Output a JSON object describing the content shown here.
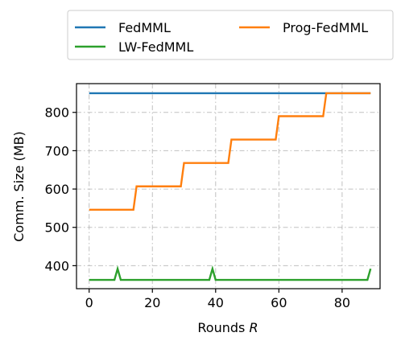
{
  "chart_data": {
    "type": "line",
    "xlabel": "Rounds ",
    "xlabel_italic": "R",
    "ylabel": "Comm. Size (MB)",
    "xlim": [
      -4,
      92
    ],
    "ylim": [
      340,
      875
    ],
    "xticks": [
      0,
      20,
      40,
      60,
      80
    ],
    "yticks": [
      400,
      500,
      600,
      700,
      800
    ],
    "grid": true,
    "legend_placement": "top, outside plot, 2 columns",
    "series": [
      {
        "name": "FedMML",
        "color": "#1f77b4",
        "x": [
          0,
          89
        ],
        "y": [
          850,
          850
        ]
      },
      {
        "name": "Prog-FedMML",
        "color": "#ff7f0e",
        "x": [
          0,
          14,
          15,
          29,
          30,
          44,
          45,
          59,
          60,
          74,
          75,
          89
        ],
        "y": [
          546,
          546,
          607,
          607,
          668,
          668,
          729,
          729,
          790,
          790,
          850,
          850
        ]
      },
      {
        "name": "LW-FedMML",
        "color": "#2ca02c",
        "x": [
          0,
          8,
          9,
          10,
          38,
          39,
          40,
          88,
          89
        ],
        "y": [
          363,
          363,
          392,
          363,
          363,
          392,
          363,
          363,
          392
        ]
      }
    ]
  }
}
